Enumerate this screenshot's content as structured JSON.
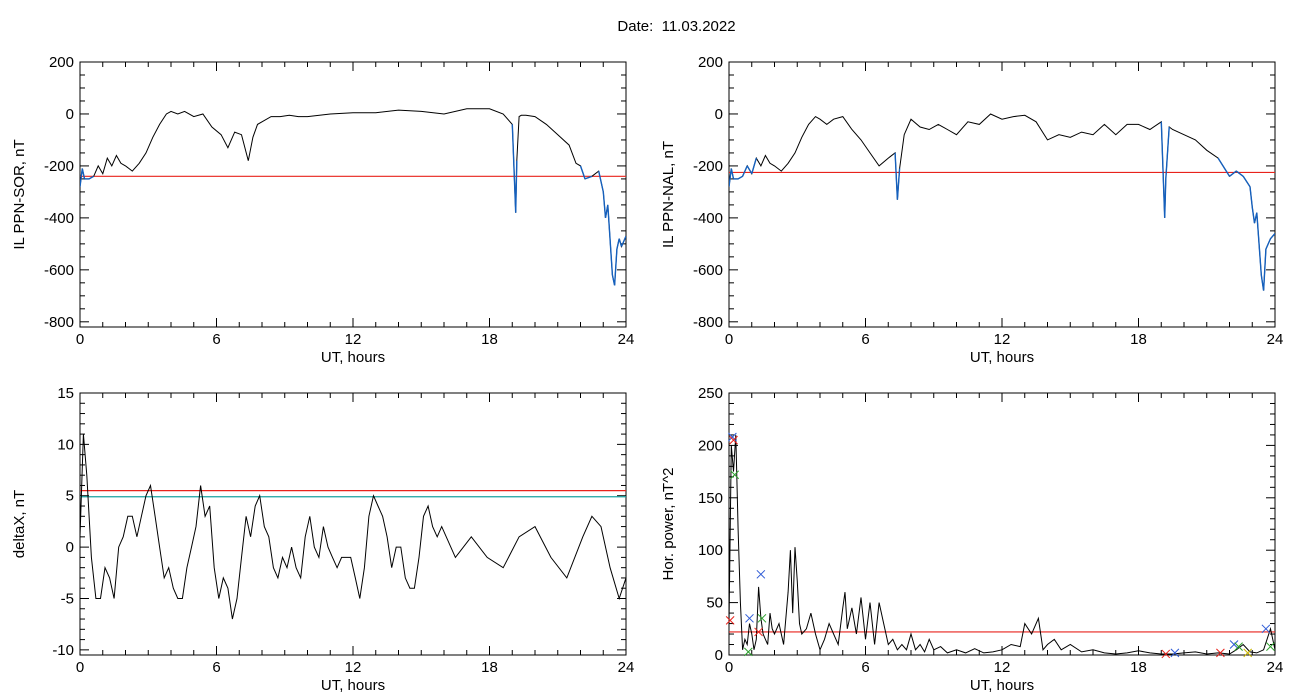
{
  "figure": {
    "title": "Date:  11.03.2022"
  },
  "colors": {
    "trace": "#000000",
    "lower": "#1560bd",
    "threshold": "#e8231c",
    "threshold2": "#19a3a0",
    "marker_blue": "#2e5bd6",
    "marker_red": "#e8231c",
    "marker_green": "#2ca02c",
    "marker_yellow": "#c8b400"
  },
  "chart_data": [
    {
      "type": "line",
      "title": "",
      "xlabel": "UT, hours",
      "ylabel": "IL PPN-SOR, nT",
      "xlim": [
        0,
        24
      ],
      "ylim": [
        -820,
        200
      ],
      "xticks": [
        0,
        6,
        12,
        18,
        24
      ],
      "xminor": 1,
      "yticks": [
        200,
        0,
        -200,
        -400,
        -600,
        -800
      ],
      "yminor": 50,
      "threshold": -240,
      "segments_below_highlighted": true,
      "x": [
        0,
        0.1,
        0.2,
        0.4,
        0.6,
        0.8,
        1.0,
        1.2,
        1.4,
        1.6,
        1.8,
        2.0,
        2.3,
        2.6,
        2.9,
        3.2,
        3.5,
        3.8,
        4.0,
        4.3,
        4.6,
        5.0,
        5.4,
        5.8,
        6.2,
        6.5,
        6.8,
        7.1,
        7.4,
        7.6,
        7.8,
        8.0,
        8.4,
        8.8,
        9.2,
        9.6,
        10.0,
        11.0,
        12.0,
        13.0,
        14.0,
        15.0,
        16.0,
        17.0,
        18.0,
        18.6,
        19.0,
        19.15,
        19.2,
        19.3,
        19.4,
        19.6,
        20.0,
        20.5,
        21.0,
        21.5,
        21.8,
        22.0,
        22.2,
        22.5,
        22.8,
        23.0,
        23.1,
        23.2,
        23.4,
        23.5,
        23.6,
        23.7,
        23.8,
        24.0
      ],
      "y": [
        -280,
        -210,
        -250,
        -250,
        -240,
        -200,
        -230,
        -170,
        -200,
        -160,
        -190,
        -200,
        -220,
        -190,
        -150,
        -90,
        -40,
        0,
        10,
        0,
        10,
        -10,
        0,
        -50,
        -80,
        -130,
        -70,
        -80,
        -180,
        -90,
        -40,
        -30,
        -10,
        -10,
        -5,
        -10,
        -10,
        0,
        5,
        5,
        15,
        10,
        0,
        20,
        20,
        0,
        -40,
        -380,
        -180,
        -10,
        -5,
        -5,
        -10,
        -40,
        -80,
        -120,
        -190,
        -200,
        -250,
        -240,
        -220,
        -300,
        -400,
        -350,
        -620,
        -660,
        -520,
        -480,
        -510,
        -470
      ]
    },
    {
      "type": "line",
      "title": "",
      "xlabel": "UT, hours",
      "ylabel": "IL PPN-NAL, nT",
      "xlim": [
        0,
        24
      ],
      "ylim": [
        -820,
        200
      ],
      "xticks": [
        0,
        6,
        12,
        18,
        24
      ],
      "xminor": 1,
      "yticks": [
        200,
        0,
        -200,
        -400,
        -600,
        -800
      ],
      "yminor": 50,
      "threshold": -225,
      "segments_below_highlighted": true,
      "x": [
        0,
        0.1,
        0.2,
        0.4,
        0.6,
        0.8,
        1.0,
        1.2,
        1.4,
        1.6,
        1.8,
        2.0,
        2.3,
        2.6,
        2.9,
        3.2,
        3.5,
        3.8,
        4.0,
        4.3,
        4.6,
        5.0,
        5.4,
        5.8,
        6.2,
        6.6,
        7.0,
        7.3,
        7.4,
        7.5,
        7.7,
        8.0,
        8.4,
        8.8,
        9.2,
        9.6,
        10.0,
        10.5,
        11.0,
        11.5,
        12.0,
        12.5,
        13.0,
        13.5,
        14.0,
        14.5,
        15.0,
        15.5,
        16.0,
        16.5,
        17.0,
        17.5,
        18.0,
        18.5,
        19.0,
        19.15,
        19.2,
        19.35,
        19.5,
        20.0,
        20.5,
        21.0,
        21.5,
        22.0,
        22.3,
        22.6,
        22.9,
        23.0,
        23.1,
        23.2,
        23.4,
        23.5,
        23.6,
        23.8,
        24.0
      ],
      "y": [
        -280,
        -210,
        -250,
        -250,
        -240,
        -200,
        -230,
        -170,
        -200,
        -160,
        -190,
        -200,
        -220,
        -190,
        -150,
        -90,
        -40,
        -10,
        -20,
        -40,
        -20,
        -10,
        -60,
        -100,
        -150,
        -200,
        -170,
        -150,
        -330,
        -210,
        -80,
        -20,
        -50,
        -60,
        -40,
        -60,
        -80,
        -30,
        -40,
        0,
        -20,
        -10,
        -5,
        -30,
        -100,
        -80,
        -90,
        -70,
        -80,
        -40,
        -80,
        -40,
        -40,
        -60,
        -30,
        -400,
        -250,
        -50,
        -60,
        -80,
        -100,
        -140,
        -170,
        -240,
        -220,
        -240,
        -280,
        -360,
        -420,
        -380,
        -620,
        -680,
        -520,
        -480,
        -460
      ]
    },
    {
      "type": "line",
      "title": "",
      "xlabel": "UT, hours",
      "ylabel": "deltaX, nT",
      "xlim": [
        0,
        24
      ],
      "ylim": [
        -10.5,
        15
      ],
      "xticks": [
        0,
        6,
        12,
        18,
        24
      ],
      "xminor": 1,
      "yticks": [
        15,
        10,
        5,
        0,
        -5,
        -10
      ],
      "yminor": 1,
      "threshold": 5.5,
      "threshold2": 4.9,
      "x": [
        0,
        0.15,
        0.3,
        0.5,
        0.7,
        0.9,
        1.1,
        1.3,
        1.5,
        1.7,
        1.9,
        2.1,
        2.3,
        2.5,
        2.7,
        2.9,
        3.1,
        3.3,
        3.5,
        3.7,
        3.9,
        4.1,
        4.3,
        4.5,
        4.7,
        4.9,
        5.1,
        5.3,
        5.5,
        5.7,
        5.9,
        6.1,
        6.3,
        6.5,
        6.7,
        6.9,
        7.1,
        7.3,
        7.5,
        7.7,
        7.9,
        8.1,
        8.3,
        8.5,
        8.7,
        8.9,
        9.1,
        9.3,
        9.5,
        9.7,
        9.9,
        10.1,
        10.3,
        10.5,
        10.7,
        10.9,
        11.1,
        11.3,
        11.5,
        11.7,
        11.9,
        12.1,
        12.3,
        12.5,
        12.7,
        12.9,
        13.1,
        13.3,
        13.5,
        13.7,
        13.9,
        14.1,
        14.3,
        14.5,
        14.7,
        14.9,
        15.1,
        15.3,
        15.5,
        15.7,
        15.9,
        16.5,
        17.2,
        17.9,
        18.6,
        19.3,
        20.0,
        20.7,
        21.4,
        22.1,
        22.5,
        22.9,
        23.3,
        23.7,
        24.0
      ],
      "y": [
        1,
        11,
        7,
        -1,
        -5,
        -5,
        -2,
        -3,
        -5,
        0,
        1,
        3,
        3,
        1,
        3,
        5,
        6,
        3,
        0,
        -3,
        -2,
        -4,
        -5,
        -5,
        -2,
        0,
        2,
        6,
        3,
        4,
        -2,
        -5,
        -3,
        -4,
        -7,
        -5,
        -1,
        3,
        1,
        4,
        5,
        2,
        1,
        -2,
        -3,
        -1,
        -2,
        0,
        -2,
        -3,
        1,
        3,
        0,
        -1,
        2,
        0,
        -1,
        -2,
        -1,
        -1,
        -1,
        -3,
        -5,
        -2,
        3,
        5,
        4,
        3,
        1,
        -2,
        0,
        0,
        -3,
        -4,
        -4,
        -1,
        3,
        4,
        2,
        1,
        2,
        -1,
        1,
        -1,
        -2,
        1,
        2,
        -1,
        -3,
        1,
        3,
        2,
        -2,
        -5,
        -3
      ]
    },
    {
      "type": "line",
      "title": "",
      "xlabel": "UT, hours",
      "ylabel": "Hor. power, nT^2",
      "xlim": [
        0,
        24
      ],
      "ylim": [
        0,
        250
      ],
      "xticks": [
        0,
        6,
        12,
        18,
        24
      ],
      "xminor": 1,
      "yticks": [
        250,
        200,
        150,
        100,
        50,
        0
      ],
      "yminor": 10,
      "threshold": 22,
      "x": [
        0,
        0.1,
        0.2,
        0.3,
        0.4,
        0.5,
        0.6,
        0.7,
        0.8,
        0.9,
        1.0,
        1.1,
        1.2,
        1.3,
        1.4,
        1.5,
        1.6,
        1.7,
        1.8,
        1.9,
        2.0,
        2.2,
        2.4,
        2.6,
        2.7,
        2.8,
        2.9,
        3.0,
        3.1,
        3.2,
        3.4,
        3.6,
        3.8,
        4.0,
        4.2,
        4.4,
        4.6,
        4.8,
        5.0,
        5.1,
        5.2,
        5.4,
        5.6,
        5.8,
        6.0,
        6.2,
        6.4,
        6.6,
        6.8,
        7.0,
        7.2,
        7.4,
        7.6,
        7.8,
        8.0,
        8.2,
        8.4,
        8.6,
        8.8,
        9.0,
        9.3,
        9.6,
        10.0,
        10.4,
        10.8,
        11.2,
        11.6,
        12.0,
        12.4,
        12.8,
        13.0,
        13.3,
        13.6,
        13.8,
        14.0,
        14.3,
        14.6,
        15.0,
        15.5,
        16.0,
        16.5,
        17.0,
        17.5,
        18.0,
        18.5,
        19.0,
        19.5,
        20.0,
        20.5,
        21.0,
        21.5,
        22.0,
        22.3,
        22.6,
        22.9,
        23.2,
        23.5,
        23.8,
        24.0
      ],
      "y": [
        30,
        200,
        175,
        210,
        120,
        50,
        5,
        15,
        10,
        30,
        20,
        5,
        15,
        65,
        35,
        20,
        15,
        10,
        40,
        25,
        20,
        30,
        10,
        60,
        100,
        40,
        103,
        70,
        30,
        20,
        25,
        40,
        20,
        5,
        15,
        30,
        20,
        10,
        45,
        60,
        25,
        45,
        20,
        55,
        15,
        50,
        10,
        50,
        30,
        10,
        15,
        5,
        10,
        5,
        20,
        5,
        10,
        3,
        15,
        5,
        8,
        2,
        5,
        2,
        6,
        2,
        3,
        5,
        10,
        8,
        30,
        20,
        35,
        5,
        10,
        15,
        5,
        10,
        3,
        5,
        2,
        1,
        2,
        4,
        2,
        1,
        1,
        2,
        3,
        1,
        2,
        1,
        5,
        10,
        3,
        2,
        5,
        25,
        5
      ]
    }
  ],
  "markers_panel4": [
    {
      "x": 0.15,
      "y": 208,
      "color": "marker_blue"
    },
    {
      "x": 0.2,
      "y": 205,
      "color": "marker_red"
    },
    {
      "x": 0.25,
      "y": 172,
      "color": "marker_green"
    },
    {
      "x": 0.05,
      "y": 33,
      "color": "marker_red"
    },
    {
      "x": 0.9,
      "y": 35,
      "color": "marker_blue"
    },
    {
      "x": 0.85,
      "y": 3,
      "color": "marker_green"
    },
    {
      "x": 1.4,
      "y": 77,
      "color": "marker_blue"
    },
    {
      "x": 1.45,
      "y": 35,
      "color": "marker_green"
    },
    {
      "x": 1.3,
      "y": 22,
      "color": "marker_red"
    },
    {
      "x": 19.2,
      "y": 1,
      "color": "marker_red"
    },
    {
      "x": 19.6,
      "y": 2,
      "color": "marker_blue"
    },
    {
      "x": 21.6,
      "y": 2,
      "color": "marker_red"
    },
    {
      "x": 22.2,
      "y": 10,
      "color": "marker_blue"
    },
    {
      "x": 22.4,
      "y": 8,
      "color": "marker_green"
    },
    {
      "x": 22.8,
      "y": 2,
      "color": "marker_yellow"
    },
    {
      "x": 23.6,
      "y": 25,
      "color": "marker_blue"
    },
    {
      "x": 23.8,
      "y": 8,
      "color": "marker_green"
    }
  ]
}
